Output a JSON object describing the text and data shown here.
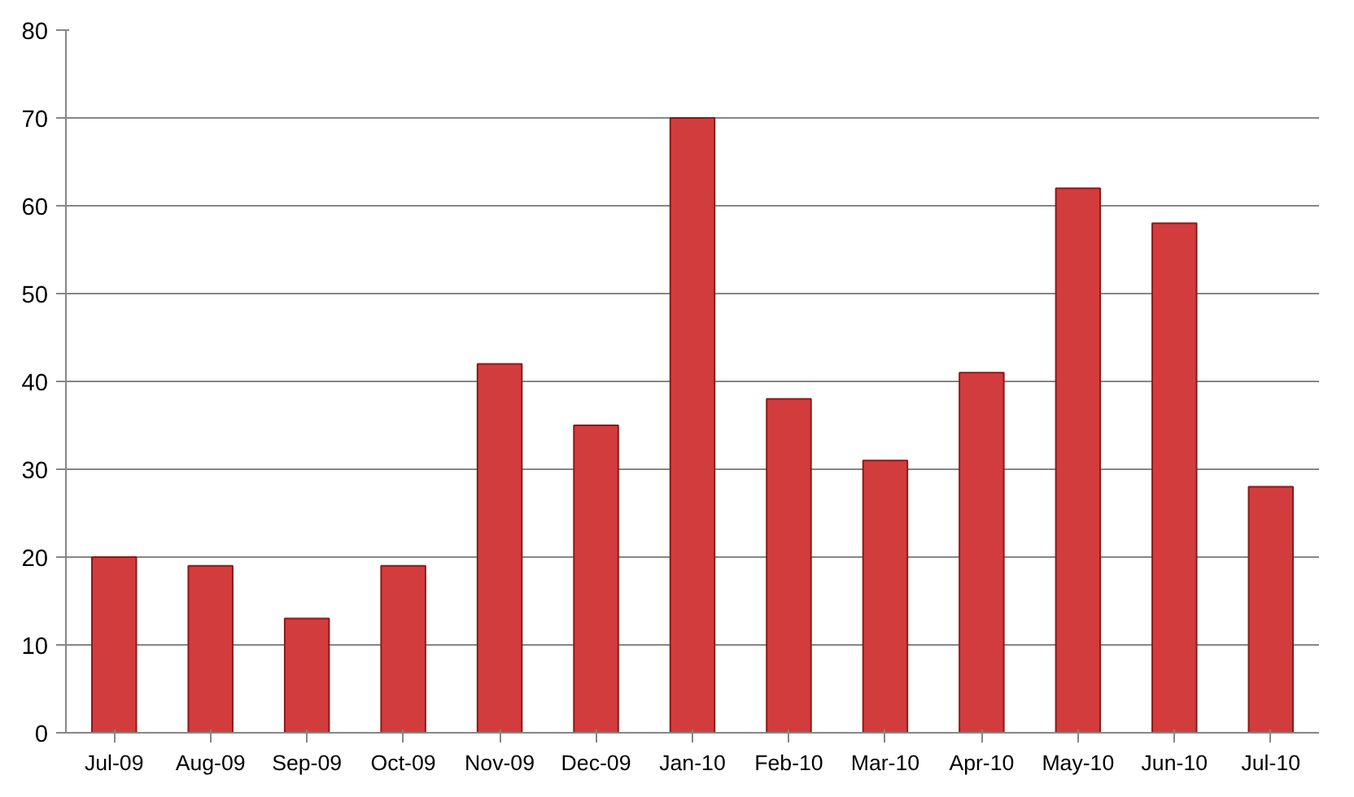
{
  "chart_data": {
    "type": "bar",
    "categories": [
      "Jul-09",
      "Aug-09",
      "Sep-09",
      "Oct-09",
      "Nov-09",
      "Dec-09",
      "Jan-10",
      "Feb-10",
      "Mar-10",
      "Apr-10",
      "May-10",
      "Jun-10",
      "Jul-10"
    ],
    "values": [
      20,
      19,
      13,
      19,
      42,
      35,
      70,
      38,
      31,
      41,
      62,
      58,
      28
    ],
    "color": "#d23c3c",
    "ylim": [
      0,
      80
    ],
    "yticks": [
      0,
      10,
      20,
      30,
      40,
      50,
      60,
      70,
      80
    ],
    "grid": "y"
  }
}
